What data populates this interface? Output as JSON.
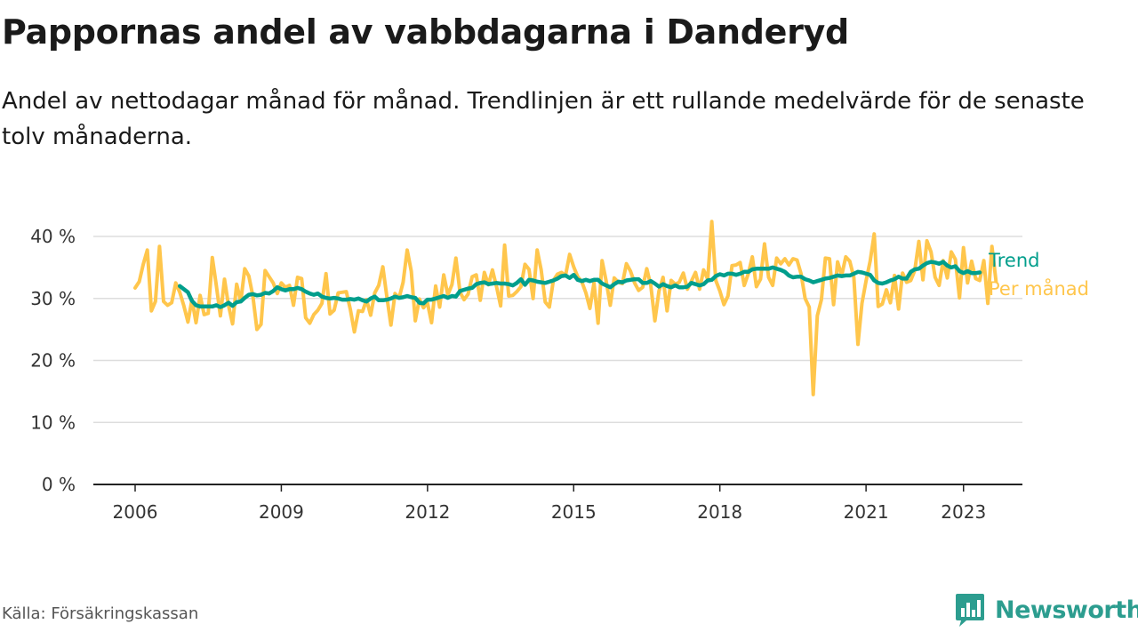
{
  "header": {
    "title": "Pappornas andel av vabbdagarna i Danderyd",
    "subtitle": "Andel av nettodagar månad för månad. Trendlinjen är ett rullande medelvärde för de senaste tolv månaderna."
  },
  "footer": {
    "source": "Källa: Försäkringskassan",
    "brand": "Newsworthy"
  },
  "colors": {
    "trend": "#009E8C",
    "monthly": "#FFC64C",
    "brand": "#2c9d8f",
    "grid": "#dddddd"
  },
  "icons": {
    "brand_logo": "bar-chart-logo-icon"
  },
  "chart_data": {
    "type": "line",
    "title": "Pappornas andel av vabbdagarna i Danderyd",
    "xlabel": "",
    "ylabel": "",
    "x_start": "2006-01",
    "x_end": "2023-05",
    "x_ticks": [
      "2006",
      "2009",
      "2012",
      "2015",
      "2018",
      "2021",
      "2023"
    ],
    "y_ticks": [
      "0 %",
      "10 %",
      "20 %",
      "30 %",
      "40 %"
    ],
    "ylim": [
      0,
      40
    ],
    "grid": true,
    "legend_placement": "right, at line ends",
    "series": [
      {
        "name": "Per månad",
        "color": "#FFC64C",
        "frequency": "monthly",
        "values": [
          31.7,
          32.7,
          35.5,
          37.8,
          28.0,
          29.5,
          38.4,
          29.5,
          28.9,
          29.3,
          32.5,
          31.0,
          28.8,
          26.2,
          29.8,
          26.1,
          30.5,
          27.4,
          27.6,
          36.6,
          32.1,
          27.2,
          33.1,
          28.9,
          25.9,
          32.3,
          29.5,
          34.8,
          33.6,
          30.3,
          25.0,
          25.8,
          34.5,
          33.5,
          32.5,
          30.8,
          32.5,
          31.8,
          32.1,
          28.9,
          33.4,
          33.2,
          26.9,
          26.0,
          27.4,
          28.1,
          29.2,
          34.0,
          27.5,
          28.1,
          30.9,
          31.0,
          31.1,
          28.2,
          24.6,
          28.0,
          27.9,
          29.8,
          27.3,
          30.9,
          32.1,
          35.1,
          30.2,
          25.7,
          30.8,
          30.1,
          32.6,
          37.8,
          34.4,
          26.4,
          29.9,
          28.5,
          29.3,
          26.1,
          32.0,
          28.6,
          33.8,
          30.6,
          32.2,
          36.5,
          31.0,
          29.8,
          30.7,
          33.5,
          33.8,
          29.7,
          34.2,
          32.2,
          34.6,
          31.9,
          28.8,
          38.6,
          30.4,
          30.5,
          31.1,
          31.9,
          35.5,
          34.7,
          30.0,
          37.8,
          34.6,
          29.4,
          28.6,
          32.9,
          33.9,
          34.2,
          33.7,
          37.1,
          35.1,
          33.5,
          32.7,
          30.9,
          28.4,
          32.5,
          26.0,
          36.1,
          32.8,
          28.9,
          33.3,
          32.6,
          32.4,
          35.6,
          34.4,
          32.5,
          31.3,
          31.8,
          34.8,
          32.1,
          26.4,
          31.2,
          33.4,
          28.0,
          32.9,
          32.3,
          32.6,
          34.1,
          31.5,
          32.8,
          34.2,
          31.5,
          34.6,
          33.1,
          42.4,
          32.9,
          31.2,
          29.0,
          30.4,
          35.3,
          35.4,
          35.8,
          32.1,
          34.0,
          36.7,
          31.9,
          33.1,
          38.8,
          33.4,
          32.1,
          36.5,
          35.6,
          36.4,
          35.4,
          36.4,
          36.2,
          34.0,
          30.0,
          28.6,
          14.5,
          27.2,
          29.8,
          36.5,
          36.4,
          29.0,
          35.9,
          33.7,
          36.7,
          36.0,
          33.4,
          22.6,
          29.2,
          32.8,
          36.0,
          40.4,
          28.7,
          29.1,
          31.4,
          29.3,
          33.7,
          28.3,
          34.1,
          32.6,
          32.9,
          34.5,
          39.2,
          33.0,
          39.3,
          37.5,
          33.4,
          32.1,
          36.1,
          33.3,
          37.5,
          36.3,
          30.1,
          38.2,
          32.5,
          36.0,
          33.2,
          32.9,
          36.1,
          29.2,
          38.4,
          32.8
        ]
      },
      {
        "name": "Trend",
        "color": "#009E8C",
        "frequency": "monthly",
        "x_start": "2006-12",
        "values": [
          32.0,
          31.5,
          31.0,
          29.6,
          28.9,
          28.7,
          28.7,
          28.7,
          28.7,
          28.9,
          28.6,
          28.9,
          29.3,
          28.8,
          29.4,
          29.5,
          30.1,
          30.6,
          30.7,
          30.5,
          30.6,
          30.9,
          30.8,
          31.2,
          31.8,
          31.5,
          31.3,
          31.5,
          31.5,
          31.7,
          31.5,
          31.1,
          30.8,
          30.6,
          30.8,
          30.3,
          30.1,
          30.0,
          30.1,
          30.0,
          29.8,
          29.8,
          29.9,
          29.8,
          30.0,
          29.7,
          29.5,
          30.0,
          30.3,
          29.7,
          29.7,
          29.8,
          30.0,
          30.3,
          30.1,
          30.2,
          30.4,
          30.2,
          30.1,
          29.3,
          29.2,
          29.8,
          29.8,
          30.0,
          30.2,
          30.4,
          30.1,
          30.4,
          30.3,
          31.2,
          31.4,
          31.6,
          31.7,
          32.3,
          32.5,
          32.6,
          32.3,
          32.4,
          32.5,
          32.4,
          32.4,
          32.3,
          32.1,
          32.5,
          33.1,
          32.2,
          33.0,
          32.9,
          32.7,
          32.6,
          32.5,
          32.7,
          32.9,
          33.2,
          33.6,
          33.7,
          33.3,
          33.8,
          33.0,
          32.8,
          33.0,
          32.8,
          33.0,
          33.0,
          32.4,
          32.1,
          31.8,
          32.3,
          32.7,
          32.6,
          32.9,
          33.0,
          33.1,
          33.1,
          32.5,
          32.5,
          32.8,
          32.4,
          31.9,
          32.3,
          32.0,
          31.8,
          32.1,
          31.8,
          31.8,
          31.9,
          32.5,
          32.3,
          32.1,
          32.3,
          32.9,
          33.0,
          33.6,
          33.9,
          33.7,
          34.0,
          34.0,
          33.8,
          34.0,
          34.3,
          34.3,
          34.7,
          34.8,
          34.8,
          34.8,
          34.8,
          35.0,
          34.8,
          34.6,
          34.3,
          33.7,
          33.4,
          33.5,
          33.5,
          33.1,
          32.9,
          32.6,
          32.8,
          33.0,
          33.2,
          33.3,
          33.5,
          33.7,
          33.6,
          33.7,
          33.7,
          34.0,
          34.3,
          34.2,
          34.0,
          33.8,
          32.9,
          32.5,
          32.4,
          32.6,
          32.9,
          33.1,
          33.5,
          33.2,
          33.2,
          34.3,
          34.7,
          34.8,
          35.3,
          35.7,
          35.9,
          35.8,
          35.6,
          35.9,
          35.3,
          35.0,
          35.2,
          34.4,
          34.1,
          34.4,
          34.1,
          34.1,
          34.2
        ]
      }
    ]
  }
}
